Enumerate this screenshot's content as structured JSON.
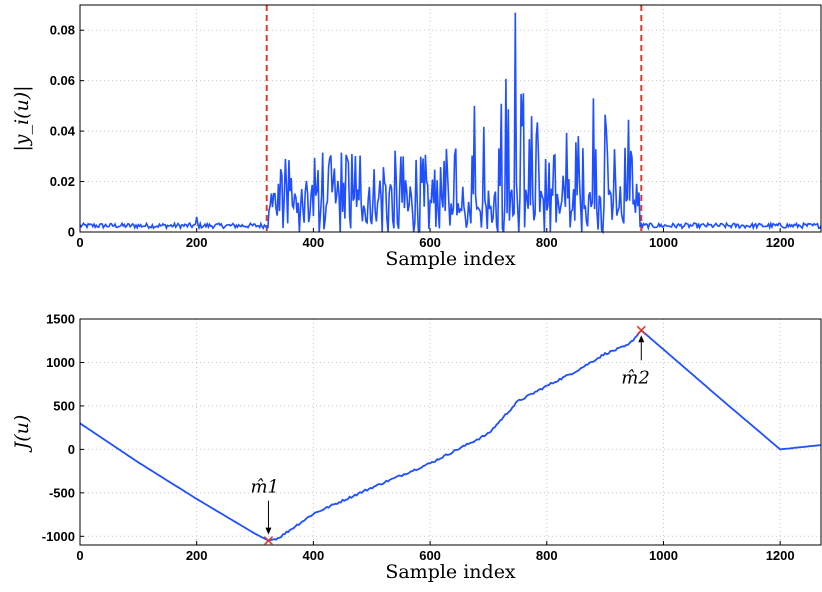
{
  "chart_data": [
    {
      "type": "line",
      "xlabel": "Sample index",
      "ylabel": "|y_i(u)|",
      "xlim": [
        0,
        1270
      ],
      "ylim": [
        0,
        0.09
      ],
      "xticks": [
        0,
        200,
        400,
        600,
        800,
        1000,
        1200
      ],
      "yticks": [
        0,
        0.02,
        0.04,
        0.06,
        0.08
      ],
      "xtick_labels": [
        "0",
        "200",
        "400",
        "600",
        "800",
        "1000",
        "1200"
      ],
      "ytick_labels": [
        "0",
        "0.02",
        "0.04",
        "0.06",
        "0.08"
      ],
      "grid": true,
      "line_color": "#1f4fff",
      "vlines": [
        {
          "x": 320,
          "color": "#e03a2a",
          "style": "dashed"
        },
        {
          "x": 962,
          "color": "#e03a2a",
          "style": "dashed"
        }
      ],
      "series": [
        {
          "description_points_x": [
            0,
            100,
            200,
            300,
            320,
            340,
            357,
            400,
            450,
            500,
            550,
            600,
            650,
            675,
            700,
            720,
            745,
            760,
            800,
            850,
            880,
            900,
            920,
            940,
            955,
            962,
            1000,
            1100,
            1200,
            1270
          ],
          "y": [
            0.002,
            0.002,
            0.002,
            0.002,
            0.002,
            0.025,
            0.04,
            0.03,
            0.035,
            0.03,
            0.035,
            0.03,
            0.04,
            0.05,
            0.046,
            0.052,
            0.087,
            0.05,
            0.04,
            0.045,
            0.052,
            0.054,
            0.04,
            0.048,
            0.03,
            0.002,
            0.002,
            0.002,
            0.002,
            0.002
          ]
        }
      ]
    },
    {
      "type": "line",
      "xlabel": "Sample index",
      "ylabel": "J(u)",
      "xlim": [
        0,
        1270
      ],
      "ylim": [
        -1100,
        1500
      ],
      "xticks": [
        0,
        200,
        400,
        600,
        800,
        1000,
        1200
      ],
      "yticks": [
        -1000,
        -500,
        0,
        500,
        1000,
        1500
      ],
      "xtick_labels": [
        "0",
        "200",
        "400",
        "600",
        "800",
        "1000",
        "1200"
      ],
      "ytick_labels": [
        "-1000",
        "-500",
        "0",
        "500",
        "1000",
        "1500"
      ],
      "grid": true,
      "line_color": "#1f4fff",
      "series": [
        {
          "x": [
            0,
            100,
            200,
            300,
            323,
            340,
            400,
            500,
            600,
            700,
            750,
            800,
            850,
            900,
            940,
            962,
            1000,
            1100,
            1200,
            1270
          ],
          "y": [
            300,
            -150,
            -570,
            -970,
            -1050,
            -1020,
            -740,
            -440,
            -160,
            180,
            550,
            730,
            900,
            1100,
            1200,
            1370,
            1150,
            570,
            0,
            50
          ]
        }
      ],
      "markers": [
        {
          "x": 323,
          "y": -1050,
          "label": "m̂1",
          "color": "#e03a2a"
        },
        {
          "x": 962,
          "y": 1370,
          "label": "m̂2",
          "color": "#e03a2a"
        }
      ]
    }
  ]
}
